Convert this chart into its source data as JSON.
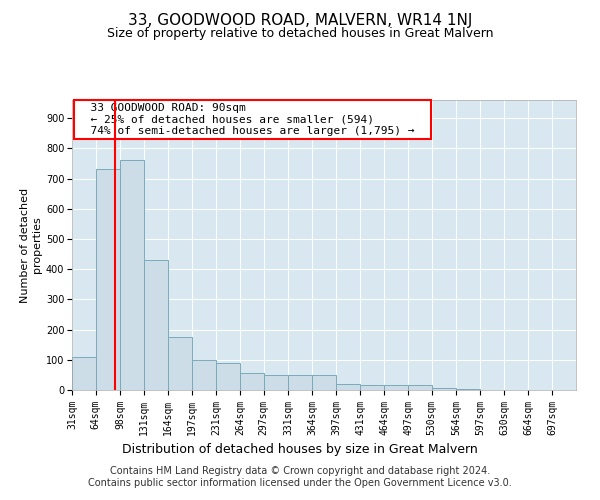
{
  "title": "33, GOODWOOD ROAD, MALVERN, WR14 1NJ",
  "subtitle": "Size of property relative to detached houses in Great Malvern",
  "xlabel": "Distribution of detached houses by size in Great Malvern",
  "ylabel": "Number of detached\nproperties",
  "bin_edges": [
    31,
    64,
    98,
    131,
    164,
    197,
    231,
    264,
    297,
    331,
    364,
    397,
    431,
    464,
    497,
    530,
    564,
    597,
    630,
    664,
    697,
    730
  ],
  "bar_heights": [
    110,
    730,
    760,
    430,
    175,
    100,
    90,
    55,
    50,
    50,
    50,
    20,
    15,
    15,
    15,
    5,
    2,
    1,
    1,
    1,
    1
  ],
  "bar_color": "#ccdde8",
  "bar_edge_color": "#7aaabb",
  "property_line_x": 90,
  "property_line_color": "red",
  "annotation_text": "  33 GOODWOOD ROAD: 90sqm  \n  ← 25% of detached houses are smaller (594)  \n  74% of semi-detached houses are larger (1,795) →  ",
  "annotation_box_color": "white",
  "annotation_box_edge": "red",
  "ylim": [
    0,
    960
  ],
  "yticks": [
    0,
    100,
    200,
    300,
    400,
    500,
    600,
    700,
    800,
    900
  ],
  "xlim_min": 31,
  "xlim_max": 730,
  "plot_bg_color": "#d9e8f0",
  "footer": "Contains HM Land Registry data © Crown copyright and database right 2024.\nContains public sector information licensed under the Open Government Licence v3.0.",
  "title_fontsize": 11,
  "subtitle_fontsize": 9,
  "xlabel_fontsize": 9,
  "ylabel_fontsize": 8,
  "tick_fontsize": 7,
  "annotation_fontsize": 8,
  "footer_fontsize": 7
}
